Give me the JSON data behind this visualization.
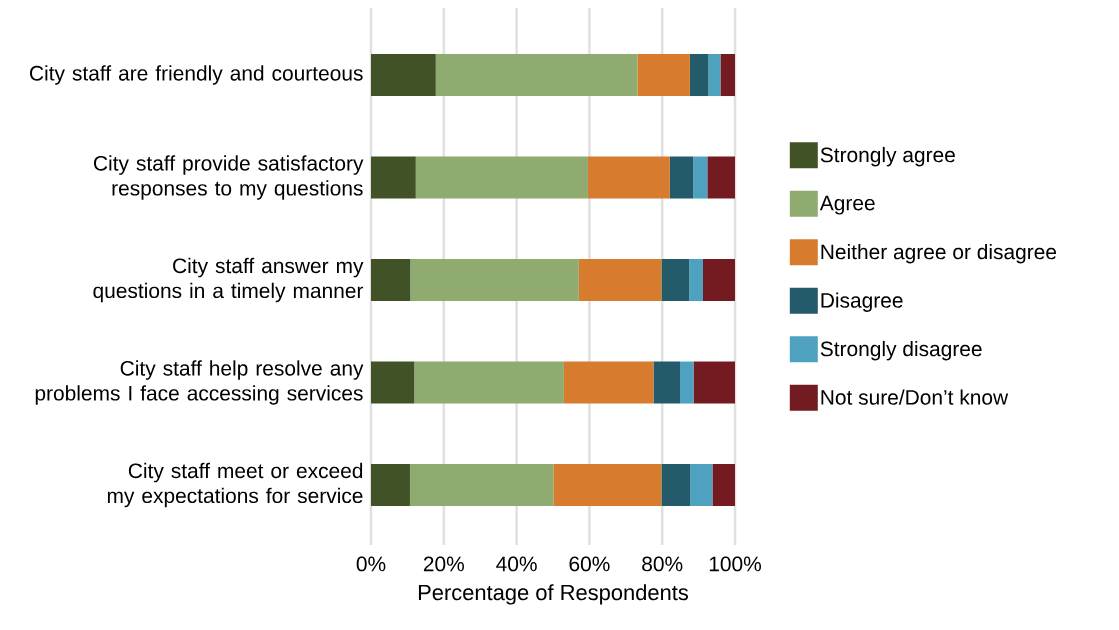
{
  "chart_data": {
    "type": "bar",
    "orientation": "horizontal",
    "stacked": true,
    "categories": [
      "City staff are friendly and courteous",
      "City staff provide satisfactory responses to my questions",
      "City staff answer my questions in a timely manner",
      "City staff help resolve any problems I face accessing services",
      "City staff meet or exceed my expectations for service"
    ],
    "series": [
      {
        "name": "Strongly agree",
        "color": "#405226",
        "values": [
          17.8,
          12.3,
          10.8,
          11.9,
          10.7
        ]
      },
      {
        "name": "Agree",
        "color": "#90ab6f",
        "values": [
          55.4,
          47.3,
          46.3,
          41.1,
          39.4
        ]
      },
      {
        "name": "Neither agree or disagree",
        "color": "#d77c2e",
        "values": [
          14.4,
          22.5,
          22.7,
          24.6,
          29.7
        ]
      },
      {
        "name": "Disagree",
        "color": "#245b6b",
        "values": [
          5.1,
          6.4,
          7.6,
          7.3,
          7.9
        ]
      },
      {
        "name": "Strongly disagree",
        "color": "#4ea2bf",
        "values": [
          3.3,
          3.9,
          3.8,
          3.7,
          6.1
        ]
      },
      {
        "name": "Not sure/Don’t know",
        "color": "#741b21",
        "values": [
          4.0,
          7.6,
          8.8,
          11.4,
          6.2
        ]
      }
    ],
    "xlabel": "Percentage of Respondents",
    "xlim": [
      0,
      100
    ],
    "xticks": [
      {
        "value": 0,
        "label": "0%"
      },
      {
        "value": 20,
        "label": "20%"
      },
      {
        "value": 40,
        "label": "40%"
      },
      {
        "value": 60,
        "label": "60%"
      },
      {
        "value": 80,
        "label": "80%"
      },
      {
        "value": 100,
        "label": "100%"
      }
    ],
    "grid": "x",
    "legend": "right"
  }
}
